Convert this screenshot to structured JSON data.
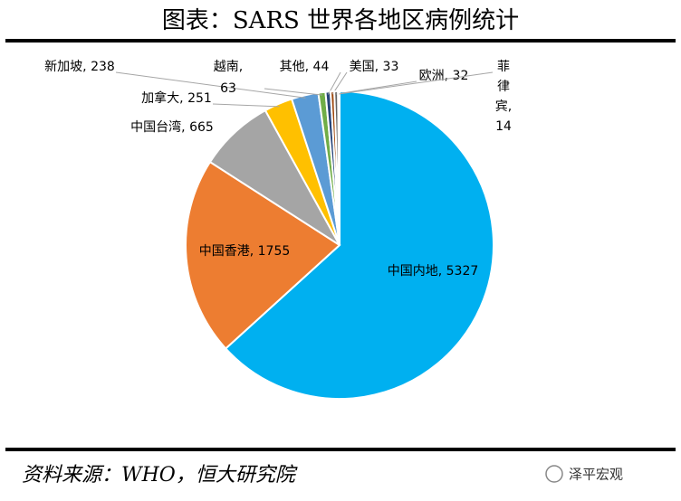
{
  "header": {
    "title": "图表：SARS 世界各地区病例统计"
  },
  "chart_data": {
    "type": "pie",
    "categories": [
      "中国内地",
      "中国香港",
      "中国台湾",
      "加拿大",
      "新加坡",
      "越南",
      "其他",
      "美国",
      "欧洲",
      "菲律宾"
    ],
    "values": [
      5327,
      1755,
      665,
      251,
      238,
      63,
      44,
      33,
      32,
      14
    ],
    "colors": [
      "#00b0f0",
      "#ed7d31",
      "#a5a5a5",
      "#ffc000",
      "#5b9bd5",
      "#70ad47",
      "#264478",
      "#9e480e",
      "#636363",
      "#997300"
    ]
  },
  "footer": {
    "source": "资料来源：WHO，恒大研究院",
    "watermark": "泽平宏观"
  }
}
